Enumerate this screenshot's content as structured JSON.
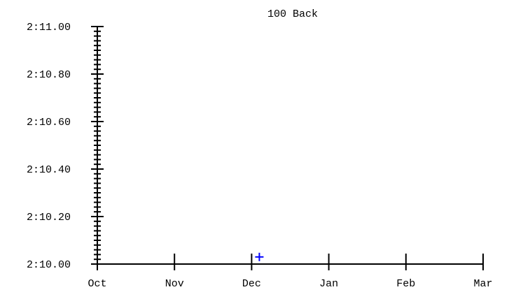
{
  "chart_data": {
    "type": "scatter",
    "title": "100 Back",
    "xlabel": "",
    "ylabel": "",
    "x_tick_labels": [
      "Oct",
      "Nov",
      "Dec",
      "Jan",
      "Feb",
      "Mar"
    ],
    "y_tick_labels": [
      "2:11.00",
      "2:10.80",
      "2:10.60",
      "2:10.40",
      "2:10.20",
      "2:10.00"
    ],
    "y_tick_values": [
      131.0,
      130.8,
      130.6,
      130.4,
      130.2,
      130.0
    ],
    "ylim": [
      130.0,
      131.0
    ],
    "y_minor_step": 0.02,
    "xlim": [
      0,
      5
    ],
    "grid": false,
    "series": [
      {
        "marker": "+",
        "color": "#0000ff",
        "points": [
          {
            "x": 2.1,
            "y": 130.03
          }
        ]
      }
    ]
  }
}
